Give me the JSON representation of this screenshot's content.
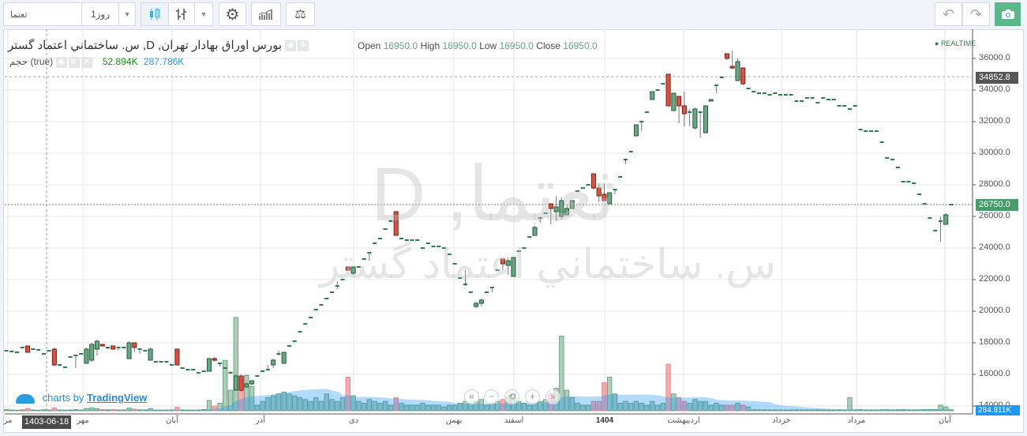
{
  "toolbar": {
    "symbol": "ثعتما",
    "interval": "1روز",
    "undo_icon": "undo-icon",
    "redo_icon": "redo-icon",
    "camera_icon": "camera-icon"
  },
  "legend": {
    "title": "بورس اوراق بهادار تهران, D, س. ساختماني اعتماد گستر",
    "open_label": "Open",
    "open": "16950.0",
    "high_label": "High",
    "high": "16950.0",
    "low_label": "Low",
    "low": "16950.0",
    "close_label": "Close",
    "close": "16950.0",
    "volume_label": "حجم (true)",
    "volume": "52.894K",
    "volume_ma": "287.786K",
    "realtime": "REALTIME"
  },
  "watermark": {
    "line1": "ثعتما, D",
    "line2": "س. ساختماني اعتماد گستر"
  },
  "branding": {
    "prefix": "charts by",
    "name": "TradingView"
  },
  "crosshair": {
    "price": "34852.8",
    "date": "1403-06-18"
  },
  "last_price": "26750.0",
  "last_volume": "284.811K",
  "colors": {
    "up": "#6ba583",
    "down": "#d75442",
    "accent": "#5cb88a",
    "volume_ma": "#9ed1f5"
  },
  "chart_data": {
    "type": "candlestick",
    "price_ticks": [
      "14000.0",
      "16000.0",
      "18000.0",
      "20000.0",
      "22000.0",
      "24000.0",
      "26000.0",
      "28000.0",
      "30000.0",
      "32000.0",
      "34000.0",
      "36000.0"
    ],
    "ylim": [
      13700,
      37850
    ],
    "time_labels": [
      "مر",
      "مهر",
      "آبان",
      "آذر",
      "دی",
      "بهمن",
      "اسفند",
      "1404",
      "اردیبهشت",
      "خرداد",
      "مرداد",
      "آبان"
    ],
    "candles_ohlcv": [
      [
        17500,
        17500,
        17500,
        17500,
        60
      ],
      [
        17450,
        17450,
        17450,
        17450,
        40
      ],
      [
        17400,
        17400,
        17400,
        17400,
        30
      ],
      [
        17700,
        17700,
        17700,
        17700,
        50
      ],
      [
        17800,
        17800,
        17400,
        17400,
        120
      ],
      [
        17600,
        17600,
        17600,
        17600,
        40
      ],
      [
        17550,
        17550,
        17550,
        17550,
        30
      ],
      [
        17300,
        17300,
        17300,
        17300,
        50
      ],
      [
        17500,
        17500,
        17500,
        17500,
        40
      ],
      [
        17600,
        17700,
        16500,
        16600,
        150
      ],
      [
        16600,
        16600,
        16600,
        16600,
        40
      ],
      [
        16450,
        16450,
        16450,
        16450,
        30
      ],
      [
        17100,
        17100,
        17100,
        17100,
        40
      ],
      [
        17200,
        17200,
        16400,
        17200,
        60
      ],
      [
        17300,
        17300,
        17300,
        17300,
        40
      ],
      [
        16700,
        17700,
        16700,
        17600,
        120
      ],
      [
        16900,
        18000,
        16800,
        17900,
        150
      ],
      [
        17600,
        18200,
        17200,
        18100,
        110
      ],
      [
        17900,
        17900,
        17800,
        17800,
        60
      ],
      [
        17700,
        17700,
        17600,
        17700,
        50
      ],
      [
        17800,
        17800,
        17600,
        17600,
        60
      ],
      [
        17700,
        17700,
        17500,
        17700,
        40
      ],
      [
        17700,
        17700,
        17700,
        17700,
        40
      ],
      [
        17000,
        18100,
        17000,
        18000,
        140
      ],
      [
        18000,
        18000,
        17400,
        17700,
        90
      ],
      [
        17600,
        17600,
        17300,
        17600,
        50
      ],
      [
        17500,
        17500,
        17500,
        17500,
        40
      ],
      [
        16900,
        17700,
        16900,
        17600,
        120
      ],
      [
        16800,
        16800,
        16800,
        16800,
        30
      ],
      [
        16800,
        16800,
        16800,
        16800,
        30
      ],
      [
        16800,
        16800,
        16800,
        16800,
        30
      ],
      [
        16600,
        16600,
        16600,
        16600,
        40
      ],
      [
        17600,
        17600,
        16600,
        16600,
        180
      ],
      [
        16400,
        16400,
        16400,
        16400,
        40
      ],
      [
        16300,
        16300,
        16300,
        16300,
        30
      ],
      [
        16300,
        16300,
        16300,
        16300,
        30
      ],
      [
        16100,
        16100,
        16100,
        16100,
        40
      ],
      [
        16200,
        16200,
        16200,
        16200,
        60
      ],
      [
        16200,
        17000,
        16200,
        17000,
        550
      ],
      [
        17000,
        17100,
        16800,
        16900,
        250
      ],
      [
        16700,
        16700,
        16500,
        16700,
        400
      ],
      [
        16400,
        16400,
        16400,
        16400,
        2700
      ],
      [
        16100,
        16200,
        16100,
        16100,
        1100
      ],
      [
        15000,
        16000,
        15000,
        15900,
        5000
      ],
      [
        15900,
        16000,
        14900,
        15000,
        1800
      ],
      [
        15200,
        15500,
        15200,
        15400,
        1900
      ],
      [
        15400,
        15600,
        15300,
        15600,
        1300
      ],
      [
        15900,
        15900,
        15900,
        15900,
        300
      ],
      [
        16200,
        16200,
        16200,
        16200,
        500
      ],
      [
        16300,
        16600,
        16300,
        16300,
        700
      ],
      [
        16600,
        17000,
        16400,
        16900,
        800
      ],
      [
        17300,
        17500,
        17200,
        17300,
        900
      ],
      [
        16700,
        17400,
        16700,
        17400,
        1000
      ],
      [
        17800,
        17800,
        17800,
        17800,
        900
      ],
      [
        18100,
        18100,
        18100,
        18100,
        800
      ],
      [
        18700,
        18700,
        18700,
        18700,
        700
      ],
      [
        19200,
        19200,
        19200,
        19200,
        600
      ],
      [
        19600,
        19600,
        19600,
        19600,
        500
      ],
      [
        20100,
        20100,
        20100,
        20100,
        700
      ],
      [
        20400,
        20400,
        20400,
        20400,
        500
      ],
      [
        20800,
        20800,
        20800,
        20800,
        900
      ],
      [
        21200,
        21200,
        21200,
        21200,
        600
      ],
      [
        21600,
        21900,
        21400,
        21600,
        500
      ],
      [
        22000,
        22000,
        22000,
        22000,
        700
      ],
      [
        22800,
        22800,
        22600,
        22600,
        1800
      ],
      [
        22400,
        22800,
        22300,
        22800,
        800
      ],
      [
        22800,
        22800,
        22800,
        22800,
        500
      ],
      [
        23300,
        23300,
        23300,
        23300,
        400
      ],
      [
        23700,
        23700,
        23200,
        23700,
        600
      ],
      [
        24300,
        24300,
        24300,
        24300,
        500
      ],
      [
        24600,
        24600,
        24600,
        24600,
        400
      ],
      [
        25200,
        25200,
        25200,
        25200,
        500
      ],
      [
        25700,
        25800,
        25700,
        25700,
        300
      ],
      [
        26300,
        26300,
        24800,
        24800,
        700
      ],
      [
        24600,
        24600,
        24600,
        24600,
        400
      ],
      [
        24500,
        24500,
        24500,
        24500,
        300
      ],
      [
        24500,
        24500,
        24500,
        24500,
        300
      ],
      [
        24500,
        24500,
        24500,
        24500,
        300
      ],
      [
        24000,
        24000,
        24000,
        24000,
        400
      ],
      [
        24300,
        24300,
        24300,
        24300,
        300
      ],
      [
        24100,
        24100,
        24100,
        24100,
        300
      ],
      [
        24100,
        24100,
        24100,
        24100,
        300
      ],
      [
        24000,
        24000,
        24000,
        24000,
        200
      ],
      [
        23600,
        23600,
        23600,
        23600,
        300
      ],
      [
        23000,
        23000,
        23000,
        23000,
        300
      ],
      [
        22100,
        22100,
        22100,
        22100,
        400
      ],
      [
        21700,
        22600,
        21600,
        21700,
        500
      ],
      [
        21200,
        21200,
        21200,
        21200,
        400
      ],
      [
        20300,
        20600,
        20200,
        20500,
        500
      ],
      [
        20500,
        20800,
        20300,
        20700,
        600
      ],
      [
        21200,
        21200,
        21200,
        21200,
        300
      ],
      [
        21500,
        21500,
        21200,
        21500,
        400
      ],
      [
        22600,
        22600,
        22600,
        22600,
        500
      ],
      [
        23300,
        23300,
        22600,
        23000,
        600
      ],
      [
        22900,
        23400,
        22300,
        23200,
        700
      ],
      [
        22200,
        23400,
        22200,
        23400,
        900
      ],
      [
        23800,
        23800,
        23800,
        23800,
        500
      ],
      [
        24000,
        24000,
        24000,
        24000,
        400
      ],
      [
        24700,
        24700,
        24700,
        24700,
        300
      ],
      [
        24800,
        25400,
        24800,
        25300,
        400
      ],
      [
        25900,
        25900,
        25600,
        25900,
        500
      ],
      [
        26200,
        26200,
        26200,
        26200,
        600
      ],
      [
        26800,
        26800,
        25500,
        26500,
        900
      ],
      [
        26300,
        27300,
        25700,
        26600,
        1200
      ],
      [
        26000,
        27200,
        25800,
        27000,
        4000
      ],
      [
        26100,
        26700,
        26100,
        26500,
        1100
      ],
      [
        26500,
        27000,
        26500,
        27000,
        700
      ],
      [
        27600,
        27600,
        27600,
        27600,
        400
      ],
      [
        27800,
        27800,
        27800,
        27800,
        300
      ],
      [
        28000,
        28000,
        28000,
        28000,
        300
      ],
      [
        28700,
        28700,
        27700,
        27800,
        500
      ],
      [
        27800,
        28100,
        26900,
        27300,
        500
      ],
      [
        27400,
        28100,
        27000,
        27000,
        1500
      ],
      [
        26800,
        27500,
        26800,
        27500,
        1800
      ],
      [
        27700,
        27700,
        27400,
        27700,
        900
      ],
      [
        28500,
        28500,
        28500,
        28500,
        400
      ],
      [
        29600,
        29600,
        29300,
        29600,
        500
      ],
      [
        30100,
        30100,
        30100,
        30100,
        400
      ],
      [
        31100,
        31800,
        31100,
        31800,
        500
      ],
      [
        32000,
        32000,
        31400,
        32000,
        400
      ],
      [
        32600,
        32600,
        32600,
        32600,
        300
      ],
      [
        33400,
        33900,
        33400,
        33900,
        500
      ],
      [
        34000,
        34000,
        34000,
        34000,
        300
      ],
      [
        34400,
        34400,
        34400,
        34400,
        400
      ],
      [
        35000,
        35000,
        33000,
        33000,
        2500
      ],
      [
        32700,
        33800,
        32700,
        33800,
        900
      ],
      [
        33600,
        33600,
        31900,
        33000,
        700
      ],
      [
        33000,
        33900,
        31700,
        32500,
        500
      ],
      [
        32600,
        32800,
        31700,
        32600,
        400
      ],
      [
        31600,
        32900,
        31500,
        32800,
        600
      ],
      [
        32600,
        32600,
        31000,
        32600,
        500
      ],
      [
        31300,
        33000,
        31300,
        33000,
        500
      ],
      [
        33300,
        33400,
        33300,
        33400,
        300
      ],
      [
        34300,
        34300,
        33800,
        34300,
        400
      ],
      [
        34800,
        34800,
        34800,
        34800,
        300
      ],
      [
        36300,
        36300,
        35900,
        36000,
        300
      ],
      [
        35500,
        36500,
        35300,
        35400,
        300
      ],
      [
        34600,
        36000,
        34600,
        35800,
        400
      ],
      [
        35400,
        35400,
        34300,
        34400,
        300
      ],
      [
        34100,
        34100,
        34100,
        34100,
        200
      ],
      [
        33900,
        33900,
        33900,
        33900,
        60
      ],
      [
        33800,
        33800,
        33800,
        33800,
        50
      ],
      [
        33800,
        33800,
        33800,
        33800,
        50
      ],
      [
        33700,
        33700,
        33700,
        33700,
        40
      ],
      [
        33800,
        33800,
        33800,
        33800,
        50
      ],
      [
        33700,
        33700,
        33700,
        33700,
        40
      ],
      [
        33700,
        33700,
        33700,
        33700,
        40
      ],
      [
        33700,
        33700,
        33700,
        33700,
        40
      ],
      [
        33300,
        33300,
        33300,
        33300,
        50
      ],
      [
        33300,
        33300,
        33300,
        33300,
        40
      ],
      [
        33500,
        33500,
        33500,
        33500,
        40
      ],
      [
        33500,
        33500,
        33500,
        33500,
        40
      ],
      [
        33200,
        33200,
        33200,
        33200,
        50
      ],
      [
        33500,
        33500,
        33500,
        33500,
        40
      ],
      [
        33400,
        33400,
        33400,
        33400,
        40
      ],
      [
        33400,
        33400,
        33400,
        33400,
        40
      ],
      [
        33000,
        33000,
        33000,
        33000,
        50
      ],
      [
        33000,
        33000,
        33000,
        33000,
        40
      ],
      [
        32800,
        32800,
        32800,
        32800,
        700
      ],
      [
        33000,
        33000,
        33000,
        33000,
        40
      ],
      [
        31500,
        31500,
        31500,
        31500,
        60
      ],
      [
        31400,
        31400,
        31400,
        31400,
        40
      ],
      [
        31400,
        31400,
        31400,
        31400,
        40
      ],
      [
        31400,
        31400,
        31400,
        31400,
        40
      ],
      [
        30700,
        30700,
        30700,
        30700,
        50
      ],
      [
        29700,
        29700,
        29700,
        29700,
        60
      ],
      [
        29600,
        29600,
        29600,
        29600,
        40
      ],
      [
        29100,
        29100,
        29100,
        29100,
        50
      ],
      [
        28200,
        28200,
        28200,
        28200,
        60
      ],
      [
        28200,
        28200,
        28200,
        28200,
        40
      ],
      [
        28100,
        28100,
        28100,
        28100,
        40
      ],
      [
        27400,
        27400,
        27400,
        27400,
        50
      ],
      [
        26800,
        26800,
        26800,
        26800,
        60
      ],
      [
        25900,
        25900,
        25900,
        25900,
        60
      ],
      [
        25100,
        25100,
        25100,
        25100,
        60
      ],
      [
        25700,
        26000,
        24400,
        25700,
        300
      ],
      [
        25500,
        26200,
        25500,
        26100,
        200
      ],
      [
        26750,
        26750,
        26750,
        26750,
        50
      ]
    ]
  }
}
